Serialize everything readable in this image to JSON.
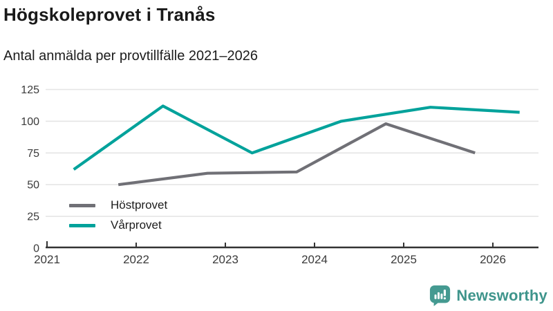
{
  "header": {
    "title": "Högskoleprovet i Tranås",
    "subtitle": "Antal anmälda per provtillfälle 2021–2026"
  },
  "chart_data": {
    "type": "line",
    "title": "Högskoleprovet i Tranås",
    "subtitle": "Antal anmälda per provtillfälle 2021–2026",
    "xlabel": "",
    "ylabel": "",
    "x_ticks": [
      2021,
      2022,
      2023,
      2024,
      2025,
      2026
    ],
    "y_ticks": [
      0,
      25,
      50,
      75,
      100,
      125
    ],
    "xlim": [
      2021,
      2026.5
    ],
    "ylim": [
      0,
      125
    ],
    "grid": true,
    "legend_position": "inside-bottom-left",
    "series": [
      {
        "name": "Höstprovet",
        "color": "#707076",
        "points": [
          {
            "x": 2021.8,
            "y": 50
          },
          {
            "x": 2022.8,
            "y": 59
          },
          {
            "x": 2023.8,
            "y": 60
          },
          {
            "x": 2024.8,
            "y": 98
          },
          {
            "x": 2025.8,
            "y": 75
          }
        ]
      },
      {
        "name": "Vårprovet",
        "color": "#00a29b",
        "points": [
          {
            "x": 2021.3,
            "y": 62
          },
          {
            "x": 2022.3,
            "y": 112
          },
          {
            "x": 2023.3,
            "y": 75
          },
          {
            "x": 2024.3,
            "y": 100
          },
          {
            "x": 2025.3,
            "y": 111
          },
          {
            "x": 2026.3,
            "y": 107
          }
        ]
      }
    ],
    "axis_color": "#333333",
    "grid_color": "#e5e5e5"
  },
  "footer": {
    "brand": "Newsworthy",
    "brand_color": "#3f958c",
    "logo_icon": "newsworthy-speech-bubble-chart-icon"
  }
}
